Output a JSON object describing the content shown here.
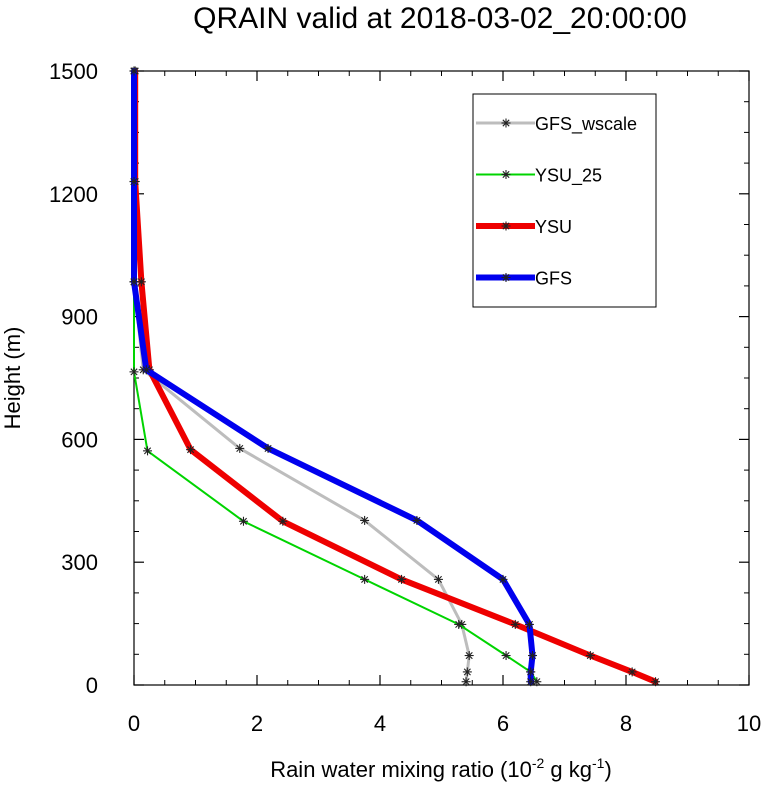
{
  "chart_data": {
    "type": "line",
    "title": "QRAIN valid at 2018-03-02_20:00:00",
    "xlabel": {
      "prefix": "Rain water mixing ratio (10",
      "exp1": "-2",
      "middle": " g kg",
      "exp2": "-1",
      "suffix": ")"
    },
    "ylabel": "Height (m)",
    "xlim": [
      0,
      10
    ],
    "ylim": [
      0,
      1500
    ],
    "xticks": [
      0,
      2,
      4,
      6,
      8,
      10
    ],
    "yticks": [
      0,
      300,
      600,
      900,
      1200,
      1500
    ],
    "xtick_labels": [
      "0",
      "2",
      "4",
      "6",
      "8",
      "10"
    ],
    "ytick_labels": [
      "0",
      "300",
      "600",
      "900",
      "1200",
      "1500"
    ],
    "legend_position": "top-right",
    "marker": "asterisk",
    "series": [
      {
        "name": "GFS_wscale",
        "color": "#bdbdbd",
        "line_width": 3,
        "points": [
          [
            5.4,
            8
          ],
          [
            5.42,
            32
          ],
          [
            5.45,
            72
          ],
          [
            5.33,
            148
          ],
          [
            4.95,
            258
          ],
          [
            3.75,
            402
          ],
          [
            1.72,
            578
          ],
          [
            0.15,
            770
          ],
          [
            0.0,
            985
          ],
          [
            0.0,
            1230
          ],
          [
            0.0,
            1500
          ]
        ]
      },
      {
        "name": "YSU_25",
        "color": "#00d400",
        "line_width": 2,
        "points": [
          [
            6.55,
            8
          ],
          [
            6.45,
            32
          ],
          [
            6.05,
            72
          ],
          [
            5.28,
            148
          ],
          [
            3.75,
            258
          ],
          [
            1.78,
            400
          ],
          [
            0.22,
            572
          ],
          [
            0.0,
            765
          ],
          [
            0.0,
            985
          ],
          [
            0.0,
            1230
          ],
          [
            0.0,
            1500
          ]
        ]
      },
      {
        "name": "YSU",
        "color": "#ee0000",
        "line_width": 6,
        "points": [
          [
            8.48,
            8
          ],
          [
            8.1,
            32
          ],
          [
            7.42,
            72
          ],
          [
            6.2,
            148
          ],
          [
            4.35,
            258
          ],
          [
            2.42,
            400
          ],
          [
            0.92,
            575
          ],
          [
            0.25,
            770
          ],
          [
            0.12,
            985
          ],
          [
            0.02,
            1230
          ],
          [
            0.02,
            1500
          ]
        ]
      },
      {
        "name": "GFS",
        "color": "#0000ee",
        "line_width": 6,
        "points": [
          [
            6.45,
            8
          ],
          [
            6.45,
            32
          ],
          [
            6.48,
            72
          ],
          [
            6.43,
            148
          ],
          [
            6.0,
            258
          ],
          [
            4.6,
            402
          ],
          [
            2.18,
            578
          ],
          [
            0.2,
            770
          ],
          [
            0.0,
            985
          ],
          [
            0.0,
            1230
          ],
          [
            0.0,
            1500
          ]
        ]
      }
    ]
  }
}
